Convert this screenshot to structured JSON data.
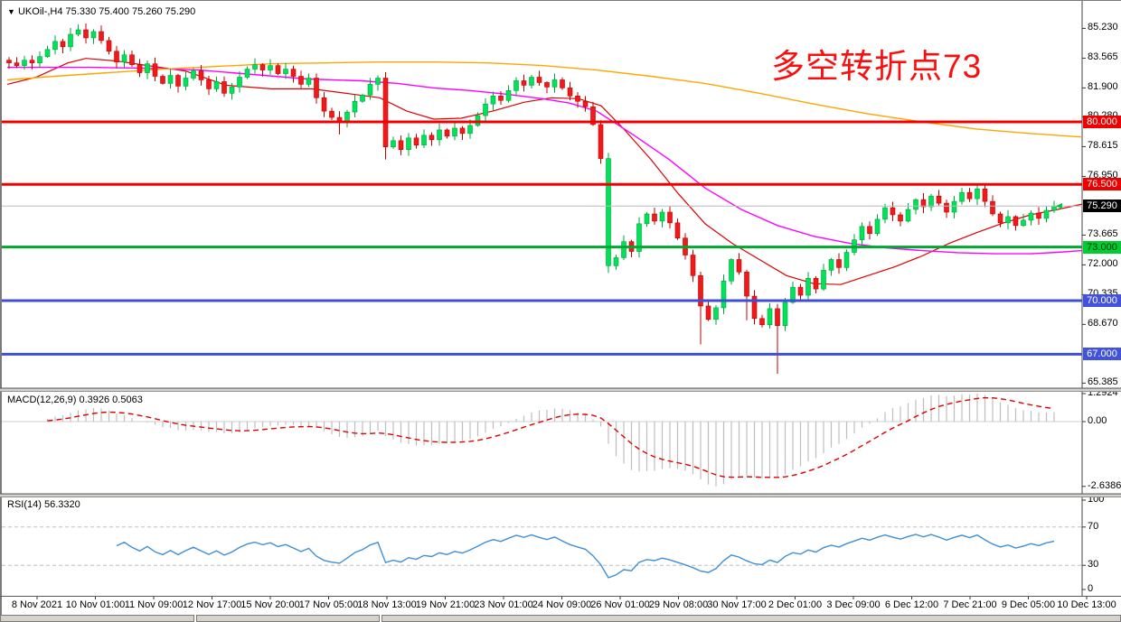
{
  "window": {
    "marker": "▼",
    "main_header": "UKOil-,H4 75.330 75.400 75.260 75.290",
    "macd_header": "MACD(12,26,9) 0.3926 0.5063",
    "rsi_header": "RSI(14) 56.3320"
  },
  "annotation": {
    "text": "多空转折点73",
    "color": "#FA0F0F"
  },
  "chart_data": {
    "type": "candlestick",
    "symbol": "UKOil-",
    "timeframe": "H4",
    "ohlc_current": {
      "open": 75.33,
      "high": 75.4,
      "low": 75.26,
      "close": 75.29
    },
    "current_price": 75.29,
    "price_axis_labels": [
      {
        "text": "85.230",
        "price": 85.23
      },
      {
        "text": "83.565",
        "price": 83.565
      },
      {
        "text": "81.900",
        "price": 81.9
      },
      {
        "text": "80.280",
        "price": 80.28
      },
      {
        "text": "78.615",
        "price": 78.615
      },
      {
        "text": "76.950",
        "price": 76.95
      },
      {
        "text": "73.665",
        "price": 73.665
      },
      {
        "text": "72.000",
        "price": 72.0
      },
      {
        "text": "70.335",
        "price": 70.335
      },
      {
        "text": "68.670",
        "price": 68.67
      },
      {
        "text": "65.385",
        "price": 65.385
      }
    ],
    "price_badges": [
      {
        "text": "80.000",
        "price": 80.0,
        "bg": "#EE0000",
        "fg": "#FFFFFF"
      },
      {
        "text": "76.500",
        "price": 76.5,
        "bg": "#EE0000",
        "fg": "#FFFFFF"
      },
      {
        "text": "75.290",
        "price": 75.29,
        "bg": "#000000",
        "fg": "#FFFFFF"
      },
      {
        "text": "73.000",
        "price": 73.0,
        "bg": "#00CC33",
        "fg": "#063306"
      },
      {
        "text": "70.000",
        "price": 70.0,
        "bg": "#4153DB",
        "fg": "#FFFFFF"
      },
      {
        "text": "67.000",
        "price": 67.0,
        "bg": "#4153DB",
        "fg": "#FFFFFF"
      }
    ],
    "hlines": [
      {
        "price": 80.0,
        "color": "#F20000",
        "width": 3
      },
      {
        "price": 76.5,
        "color": "#F20000",
        "width": 3
      },
      {
        "price": 73.0,
        "color": "#00A832",
        "width": 3
      },
      {
        "price": 70.0,
        "color": "#3D4FD8",
        "width": 3
      },
      {
        "price": 67.0,
        "color": "#3D4FD8",
        "width": 3
      }
    ],
    "x_axis_labels": [
      "8 Nov 2021",
      "10 Nov 01:00",
      "11 Nov 09:00",
      "12 Nov 17:00",
      "15 Nov 20:00",
      "17 Nov 05:00",
      "18 Nov 13:00",
      "19 Nov 21:00",
      "23 Nov 01:00",
      "24 Nov 09:00",
      "26 Nov 01:00",
      "29 Nov 08:00",
      "30 Nov 17:00",
      "2 Dec 01:00",
      "3 Dec 09:00",
      "6 Dec 12:00",
      "7 Dec 21:00",
      "9 Dec 05:00",
      "10 Dec 13:00"
    ],
    "candles": {
      "first_open": 83.45,
      "closes": [
        83.3,
        83.15,
        83.45,
        83.3,
        83.65,
        84.05,
        84.5,
        84.2,
        84.9,
        85.15,
        84.7,
        85.05,
        84.55,
        83.95,
        83.35,
        83.75,
        83.2,
        82.75,
        83.25,
        82.55,
        82.15,
        82.6,
        82.0,
        82.45,
        82.85,
        82.35,
        81.85,
        82.25,
        81.6,
        81.95,
        82.5,
        82.95,
        83.2,
        82.9,
        83.15,
        82.7,
        82.95,
        82.55,
        82.1,
        82.45,
        81.35,
        80.6,
        80.25,
        80.05,
        80.55,
        81.15,
        81.5,
        82.1,
        82.45,
        78.6,
        78.95,
        78.45,
        79.1,
        78.7,
        79.25,
        79.0,
        79.55,
        79.2,
        79.65,
        79.35,
        79.8,
        80.35,
        81.0,
        81.45,
        81.2,
        81.75,
        82.3,
        82.05,
        82.5,
        82.2,
        81.95,
        82.35,
        81.9,
        81.45,
        81.15,
        80.85,
        79.85,
        77.95,
        71.95,
        72.4,
        73.3,
        72.75,
        74.3,
        74.85,
        74.45,
        74.95,
        74.35,
        73.5,
        72.55,
        71.4,
        69.7,
        68.95,
        69.6,
        71.1,
        72.3,
        71.6,
        70.25,
        69.0,
        68.65,
        69.55,
        68.6,
        69.9,
        70.75,
        70.3,
        71.25,
        70.65,
        71.7,
        72.3,
        71.85,
        72.7,
        73.4,
        74.15,
        73.75,
        74.55,
        75.2,
        74.8,
        74.45,
        75.1,
        75.65,
        75.25,
        75.85,
        75.45,
        74.95,
        75.55,
        76.05,
        75.7,
        76.25,
        75.55,
        74.85,
        74.35,
        74.7,
        74.2,
        74.5,
        74.9,
        74.6,
        75.05,
        75.29
      ],
      "low_overrides": {
        "43": 79.3,
        "49": 77.9,
        "78": 71.55,
        "90": 67.55,
        "96": 68.9,
        "100": 65.9
      },
      "high_overrides": {
        "9": 85.45,
        "126": 76.55
      },
      "color_overrides": {
        "78": "up"
      }
    },
    "ma_lines": [
      {
        "name": "ma-fast-red",
        "color": "#DD0000",
        "width": 1.2,
        "points": [
          [
            8,
            82.1
          ],
          [
            40,
            82.5
          ],
          [
            75,
            83.3
          ],
          [
            95,
            83.55
          ],
          [
            130,
            83.4
          ],
          [
            170,
            83.1
          ],
          [
            205,
            82.85
          ],
          [
            250,
            82.05
          ],
          [
            300,
            81.85
          ],
          [
            345,
            81.85
          ],
          [
            390,
            81.55
          ],
          [
            420,
            81.35
          ],
          [
            450,
            80.6
          ],
          [
            480,
            80.15
          ],
          [
            510,
            80.2
          ],
          [
            545,
            80.6
          ],
          [
            580,
            81.1
          ],
          [
            610,
            81.35
          ],
          [
            640,
            81.3
          ],
          [
            665,
            80.9
          ],
          [
            690,
            79.6
          ],
          [
            720,
            77.9
          ],
          [
            750,
            76.0
          ],
          [
            780,
            74.3
          ],
          [
            810,
            73.2
          ],
          [
            840,
            72.3
          ],
          [
            870,
            71.4
          ],
          [
            900,
            70.95
          ],
          [
            930,
            70.9
          ],
          [
            960,
            71.4
          ],
          [
            990,
            71.9
          ],
          [
            1020,
            72.5
          ],
          [
            1050,
            73.2
          ],
          [
            1080,
            73.8
          ],
          [
            1110,
            74.35
          ],
          [
            1140,
            74.8
          ],
          [
            1170,
            75.1
          ],
          [
            1197,
            75.4
          ]
        ]
      },
      {
        "name": "ma-mid-magenta",
        "color": "#FF00FF",
        "width": 1.4,
        "points": [
          [
            8,
            83.05
          ],
          [
            100,
            83.05
          ],
          [
            160,
            83.0
          ],
          [
            220,
            82.9
          ],
          [
            280,
            82.65
          ],
          [
            340,
            82.4
          ],
          [
            400,
            82.3
          ],
          [
            440,
            82.15
          ],
          [
            480,
            81.9
          ],
          [
            520,
            81.75
          ],
          [
            560,
            81.55
          ],
          [
            600,
            81.3
          ],
          [
            630,
            81.05
          ],
          [
            660,
            80.6
          ],
          [
            700,
            79.3
          ],
          [
            740,
            77.9
          ],
          [
            780,
            76.3
          ],
          [
            820,
            75.1
          ],
          [
            860,
            74.2
          ],
          [
            900,
            73.6
          ],
          [
            940,
            73.2
          ],
          [
            980,
            72.95
          ],
          [
            1020,
            72.8
          ],
          [
            1060,
            72.68
          ],
          [
            1100,
            72.62
          ],
          [
            1140,
            72.62
          ],
          [
            1170,
            72.7
          ],
          [
            1197,
            72.8
          ]
        ]
      },
      {
        "name": "ma-slow-orange",
        "color": "#FFA500",
        "width": 1.4,
        "points": [
          [
            8,
            82.35
          ],
          [
            60,
            82.55
          ],
          [
            120,
            82.75
          ],
          [
            180,
            82.95
          ],
          [
            240,
            83.1
          ],
          [
            300,
            83.25
          ],
          [
            360,
            83.3
          ],
          [
            420,
            83.35
          ],
          [
            480,
            83.35
          ],
          [
            540,
            83.3
          ],
          [
            600,
            83.15
          ],
          [
            660,
            82.9
          ],
          [
            720,
            82.55
          ],
          [
            780,
            82.15
          ],
          [
            840,
            81.6
          ],
          [
            900,
            81.0
          ],
          [
            960,
            80.45
          ],
          [
            1020,
            80.0
          ],
          [
            1080,
            79.6
          ],
          [
            1140,
            79.35
          ],
          [
            1197,
            79.15
          ]
        ]
      }
    ],
    "macd": {
      "params": [
        12,
        26,
        9
      ],
      "value_macd": 0.3926,
      "value_signal": 0.5063,
      "axis_labels": [
        {
          "text": "1.2924",
          "value": 1.2924
        },
        {
          "text": "0.00",
          "value": 0.0
        },
        {
          "text": "-2.6386",
          "value": -2.6386
        }
      ],
      "hist_color": "#BDBDBD",
      "signal_color": "#E00000"
    },
    "rsi": {
      "period": 14,
      "value": 56.332,
      "axis_labels": [
        {
          "text": "100",
          "value": 100
        },
        {
          "text": "70",
          "value": 70
        },
        {
          "text": "30",
          "value": 30
        },
        {
          "text": "0",
          "value": 0
        }
      ],
      "levels": [
        70,
        30
      ],
      "line_color": "#3E8FD6",
      "level_color": "#BDBDBD"
    },
    "colors": {
      "up_fill": "#00E359",
      "up_stroke": "#00A43B",
      "down_fill": "#F01A1A",
      "down_stroke": "#C00000",
      "price_line": "#BBBBBB",
      "last_marker": "#00C84B"
    }
  }
}
